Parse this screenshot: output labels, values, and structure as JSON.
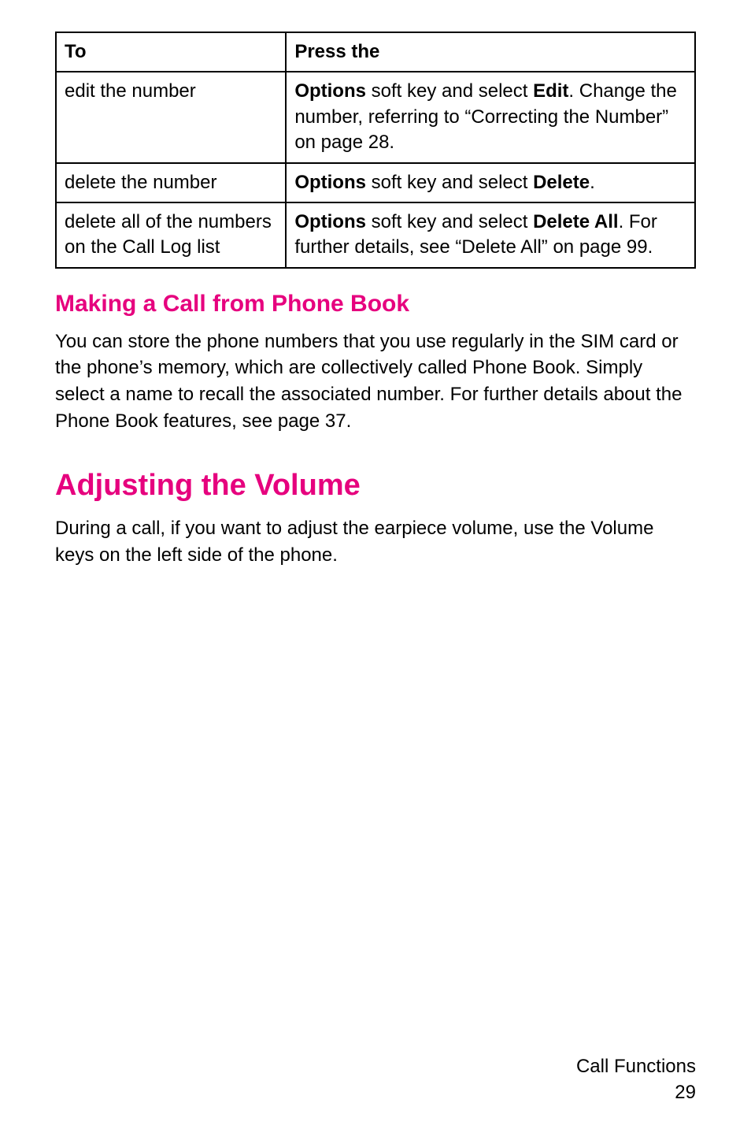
{
  "colors": {
    "accent": "#e6007e",
    "text": "#000000",
    "border": "#000000",
    "background": "#ffffff"
  },
  "table": {
    "header": {
      "to": "To",
      "press": "Press the"
    },
    "rows": [
      {
        "to": "edit the number",
        "press_parts": [
          {
            "text": "Options",
            "bold": true
          },
          {
            "text": " soft key and select ",
            "bold": false
          },
          {
            "text": "Edit",
            "bold": true
          },
          {
            "text": ". Change the number, referring to “Correcting the Number” on page 28.",
            "bold": false
          }
        ]
      },
      {
        "to": "delete the number",
        "press_parts": [
          {
            "text": "Options",
            "bold": true
          },
          {
            "text": " soft key and select ",
            "bold": false
          },
          {
            "text": "Delete",
            "bold": true
          },
          {
            "text": ".",
            "bold": false
          }
        ]
      },
      {
        "to": "delete all of the numbers on the Call Log list",
        "press_parts": [
          {
            "text": "Options",
            "bold": true
          },
          {
            "text": " soft key and select ",
            "bold": false
          },
          {
            "text": "Delete All",
            "bold": true
          },
          {
            "text": ". For further details, see “Delete All” on page 99.",
            "bold": false
          }
        ]
      }
    ]
  },
  "subheading": "Making a Call from Phone Book",
  "sub_paragraph": "You can store the phone numbers that you use regularly in the SIM card or the phone’s memory, which are collectively called Phone Book. Simply select a name to recall the associated number. For further details about the Phone Book features, see page 37.",
  "main_heading": "Adjusting the Volume",
  "main_paragraph": "During a call, if you want to adjust the earpiece volume, use the Volume keys on the left side of the phone.",
  "footer": {
    "section": "Call Functions",
    "page": "29"
  }
}
